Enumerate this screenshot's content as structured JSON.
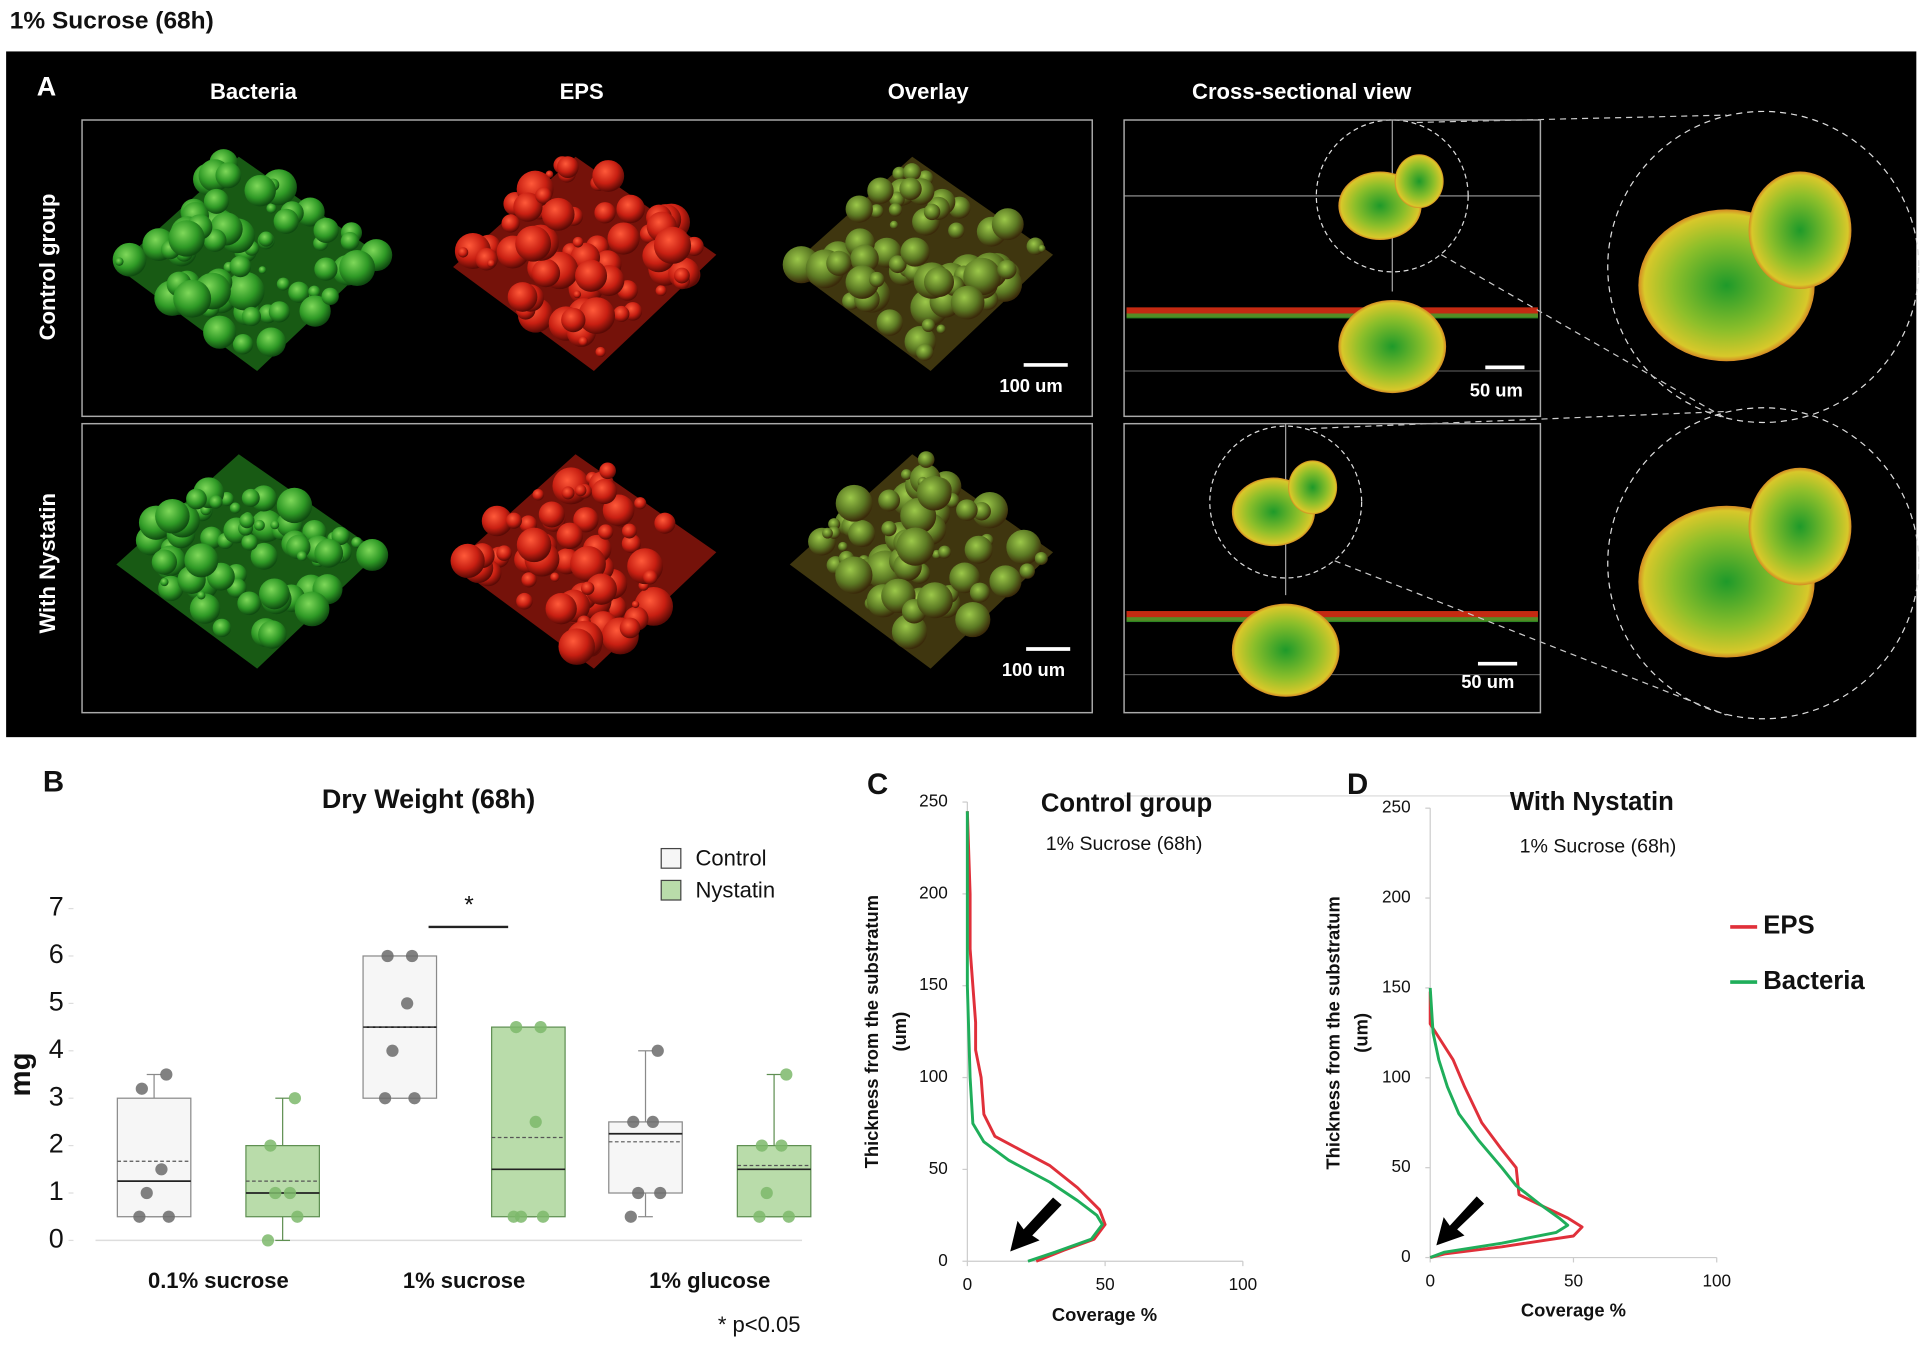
{
  "title": "1% Sucrose (68h)",
  "panel_a": {
    "label": "A",
    "columns": [
      "Bacteria",
      "EPS",
      "Overlay",
      "Cross-sectional view"
    ],
    "rows": [
      "Control group",
      "With Nystatin"
    ],
    "scale_bars": [
      "100 um",
      "50 um",
      "100 um",
      "50 um"
    ]
  },
  "chart_data": [
    {
      "type": "box",
      "label": "B",
      "title": "Dry Weight (68h)",
      "y_label": "mg",
      "categories": [
        "0.1% sucrose",
        "1% sucrose",
        "1% glucose"
      ],
      "ylim": [
        0,
        7
      ],
      "yticks": [
        0,
        1,
        2,
        3,
        4,
        5,
        6,
        7
      ],
      "series": [
        {
          "name": "Control",
          "color": "#f6f6f6",
          "stroke": "#8a8a8a",
          "point_color": "#6b6b6b",
          "boxes": [
            {
              "min": 0.5,
              "q1": 0.5,
              "median": 1.25,
              "q3": 3,
              "max": 3.5,
              "mean": 1.67,
              "points": [
                3.5,
                3.2,
                1.5,
                1,
                0.5,
                0.5
              ]
            },
            {
              "min": 3,
              "q1": 3,
              "median": 4.5,
              "q3": 6,
              "max": 6,
              "mean": 4.5,
              "points": [
                6,
                6,
                5,
                4,
                3,
                3
              ]
            },
            {
              "min": 0.5,
              "q1": 1,
              "median": 2.25,
              "q3": 2.5,
              "max": 4,
              "mean": 2.08,
              "points": [
                4,
                2.5,
                2.5,
                1,
                1,
                0.5
              ]
            }
          ]
        },
        {
          "name": "Nystatin",
          "color": "#b9dcaa",
          "stroke": "#5f8f52",
          "point_color": "#7cb86b",
          "boxes": [
            {
              "min": 0,
              "q1": 0.5,
              "median": 1,
              "q3": 2,
              "max": 3,
              "mean": 1.25,
              "points": [
                3,
                2,
                1,
                1,
                0.5,
                0
              ]
            },
            {
              "min": 0.5,
              "q1": 0.5,
              "median": 1.5,
              "q3": 4.5,
              "max": 4.5,
              "mean": 2.17,
              "points": [
                4.5,
                4.5,
                2.5,
                0.5,
                0.5,
                0.5
              ]
            },
            {
              "min": 0.5,
              "q1": 0.5,
              "median": 1.5,
              "q3": 2,
              "max": 3.5,
              "mean": 1.58,
              "points": [
                3.5,
                2,
                2,
                1,
                0.5,
                0.5
              ]
            }
          ]
        }
      ],
      "annotation": "*",
      "note": "* p<0.05"
    },
    {
      "type": "line",
      "label": "C",
      "title": "Control group",
      "subtitle": "1% Sucrose (68h)",
      "x_label": "Coverage %",
      "y_label": "Thickness from the substratum",
      "y_label_unit": "(um)",
      "xlim": [
        0,
        100
      ],
      "xticks": [
        0,
        50,
        100
      ],
      "ylim": [
        0,
        250
      ],
      "yticks": [
        0,
        50,
        100,
        150,
        200,
        250
      ],
      "series": [
        {
          "color": "#e0303a",
          "x": [
            0,
            1,
            1,
            3,
            3,
            5,
            6,
            10,
            20,
            30,
            40,
            48,
            50,
            46,
            35,
            25
          ],
          "values": [
            245,
            200,
            170,
            130,
            115,
            100,
            80,
            68,
            60,
            52,
            40,
            28,
            20,
            12,
            6,
            0
          ]
        },
        {
          "color": "#1fae5a",
          "x": [
            0,
            0,
            0,
            1,
            2,
            6,
            15,
            30,
            40,
            47,
            49,
            45,
            32,
            22
          ],
          "values": [
            245,
            200,
            150,
            100,
            75,
            65,
            55,
            43,
            33,
            25,
            20,
            12,
            5,
            0
          ]
        }
      ]
    },
    {
      "type": "line",
      "label": "D",
      "title": "With Nystatin",
      "subtitle": "1% Sucrose (68h)",
      "x_label": "Coverage %",
      "y_label": "Thickness from the substratum",
      "y_label_unit": "(um)",
      "xlim": [
        0,
        100
      ],
      "xticks": [
        0,
        50,
        100
      ],
      "ylim": [
        0,
        250
      ],
      "yticks": [
        0,
        50,
        100,
        150,
        200,
        250
      ],
      "legend": "right",
      "series": [
        {
          "name": "EPS",
          "color": "#e0303a",
          "x": [
            0,
            0,
            4,
            8,
            12,
            18,
            25,
            30,
            31,
            40,
            48,
            53,
            50,
            25,
            5,
            0
          ],
          "values": [
            148,
            130,
            120,
            110,
            95,
            75,
            60,
            50,
            35,
            28,
            22,
            17,
            12,
            6,
            2,
            0
          ]
        },
        {
          "name": "Bacteria",
          "color": "#1fae5a",
          "x": [
            0,
            1,
            3,
            6,
            10,
            17,
            25,
            30,
            38,
            45,
            48,
            44,
            25,
            5,
            0
          ],
          "values": [
            150,
            125,
            110,
            95,
            80,
            65,
            50,
            40,
            30,
            22,
            18,
            14,
            8,
            3,
            0
          ]
        }
      ]
    }
  ]
}
